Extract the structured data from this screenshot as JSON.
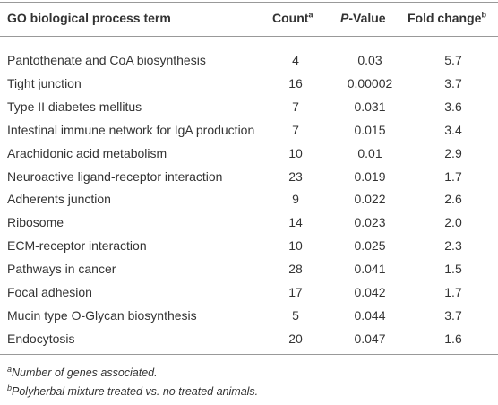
{
  "table": {
    "header": {
      "term": "GO biological process term",
      "count": "Count",
      "count_sup": "a",
      "p_italic": "P",
      "p_rest": "-Value",
      "fold": "Fold change",
      "fold_sup": "b"
    },
    "rows": [
      [
        "Pantothenate and CoA biosynthesis",
        "4",
        "0.03",
        "5.7"
      ],
      [
        "Tight junction",
        "16",
        "0.00002",
        "3.7"
      ],
      [
        "Type II diabetes mellitus",
        "7",
        "0.031",
        "3.6"
      ],
      [
        "Intestinal immune network for IgA production",
        "7",
        "0.015",
        "3.4"
      ],
      [
        "Arachidonic acid metabolism",
        "10",
        "0.01",
        "2.9"
      ],
      [
        "Neuroactive ligand-receptor interaction",
        "23",
        "0.019",
        "1.7"
      ],
      [
        "Adherents junction",
        "9",
        "0.022",
        "2.6"
      ],
      [
        "Ribosome",
        "14",
        "0.023",
        "2.0"
      ],
      [
        "ECM-receptor interaction",
        "10",
        "0.025",
        "2.3"
      ],
      [
        "Pathways in cancer",
        "28",
        "0.041",
        "1.5"
      ],
      [
        "Focal adhesion",
        "17",
        "0.042",
        "1.7"
      ],
      [
        "Mucin type O-Glycan biosynthesis",
        "5",
        "0.044",
        "3.7"
      ],
      [
        "Endocytosis",
        "20",
        "0.047",
        "1.6"
      ]
    ],
    "footnotes": [
      {
        "mark": "a",
        "text": "Number of genes associated."
      },
      {
        "mark": "b",
        "text": "Polyherbal mixture treated vs. no treated animals."
      }
    ]
  }
}
